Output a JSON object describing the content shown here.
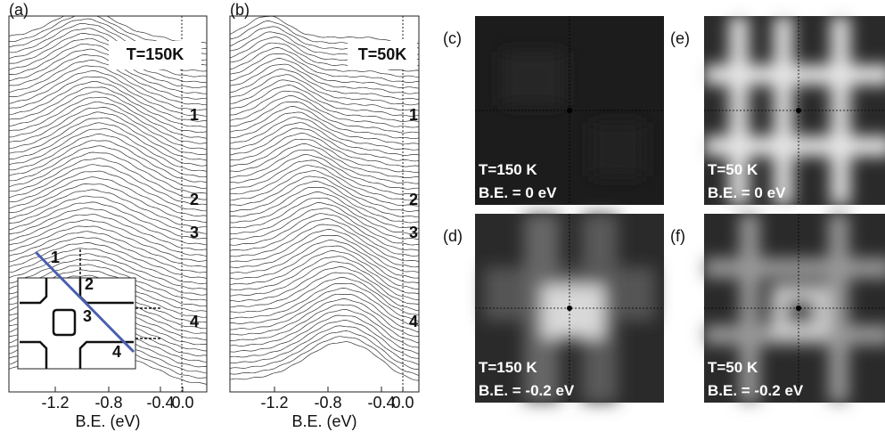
{
  "panels": [
    {
      "label": "(a)",
      "temperature": "T=150K",
      "xticks": [
        "-1.2",
        "-0.8",
        "-0.4",
        "0.0"
      ],
      "xlabel": "B.E. (eV)",
      "cut_labels": [
        "1",
        "2",
        "3",
        "4"
      ],
      "inset_labels": [
        "1",
        "2",
        "3",
        "4"
      ]
    },
    {
      "label": "(b)",
      "temperature": "T=50K",
      "xticks": [
        "-1.2",
        "-0.8",
        "-0.4",
        "0.0"
      ],
      "xlabel": "B.E. (eV)",
      "cut_labels": [
        "1",
        "2",
        "3",
        "4"
      ]
    },
    {
      "label": "(c)",
      "caption": [
        "T=150 K",
        "B.E. = 0 eV"
      ]
    },
    {
      "label": "(e)",
      "caption": [
        "T=50 K",
        "B.E. = 0 eV"
      ]
    },
    {
      "label": "(d)",
      "caption": [
        "T=150 K",
        "B.E. = -0.2 eV"
      ]
    },
    {
      "label": "(f)",
      "caption": [
        "T=50 K",
        "B.E. = -0.2 eV"
      ]
    }
  ]
}
